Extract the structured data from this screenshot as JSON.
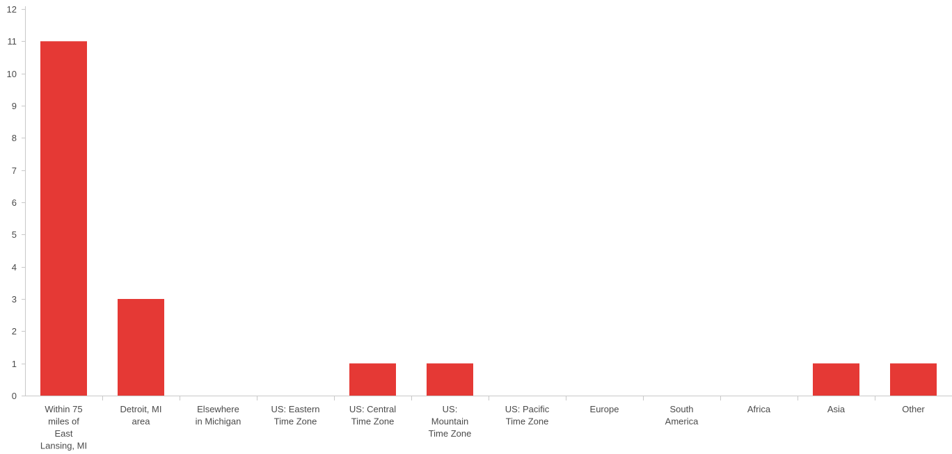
{
  "chart_data": {
    "type": "bar",
    "title": "",
    "xlabel": "",
    "ylabel": "",
    "ylim": [
      0,
      12
    ],
    "yticks": [
      0,
      1,
      2,
      3,
      4,
      5,
      6,
      7,
      8,
      9,
      10,
      11,
      12
    ],
    "grid": false,
    "bar_color": "#e53935",
    "categories": [
      "Within 75 miles of East Lansing, MI",
      "Detroit, MI area",
      "Elsewhere in Michigan",
      "US: Eastern Time Zone",
      "US: Central Time Zone",
      "US: Mountain Time Zone",
      "US: Pacific Time Zone",
      "Europe",
      "South America",
      "Africa",
      "Asia",
      "Other"
    ],
    "category_lines": [
      [
        "Within 75",
        "miles of",
        "East",
        "Lansing, MI"
      ],
      [
        "Detroit, MI",
        "area"
      ],
      [
        "Elsewhere",
        "in Michigan"
      ],
      [
        "US: Eastern",
        "Time Zone"
      ],
      [
        "US: Central",
        "Time Zone"
      ],
      [
        "US:",
        "Mountain",
        "Time Zone"
      ],
      [
        "US: Pacific",
        "Time Zone"
      ],
      [
        "Europe"
      ],
      [
        "South",
        "America"
      ],
      [
        "Africa"
      ],
      [
        "Asia"
      ],
      [
        "Other"
      ]
    ],
    "values": [
      11,
      3,
      0,
      0,
      1,
      1,
      0,
      0,
      0,
      0,
      1,
      1
    ]
  }
}
